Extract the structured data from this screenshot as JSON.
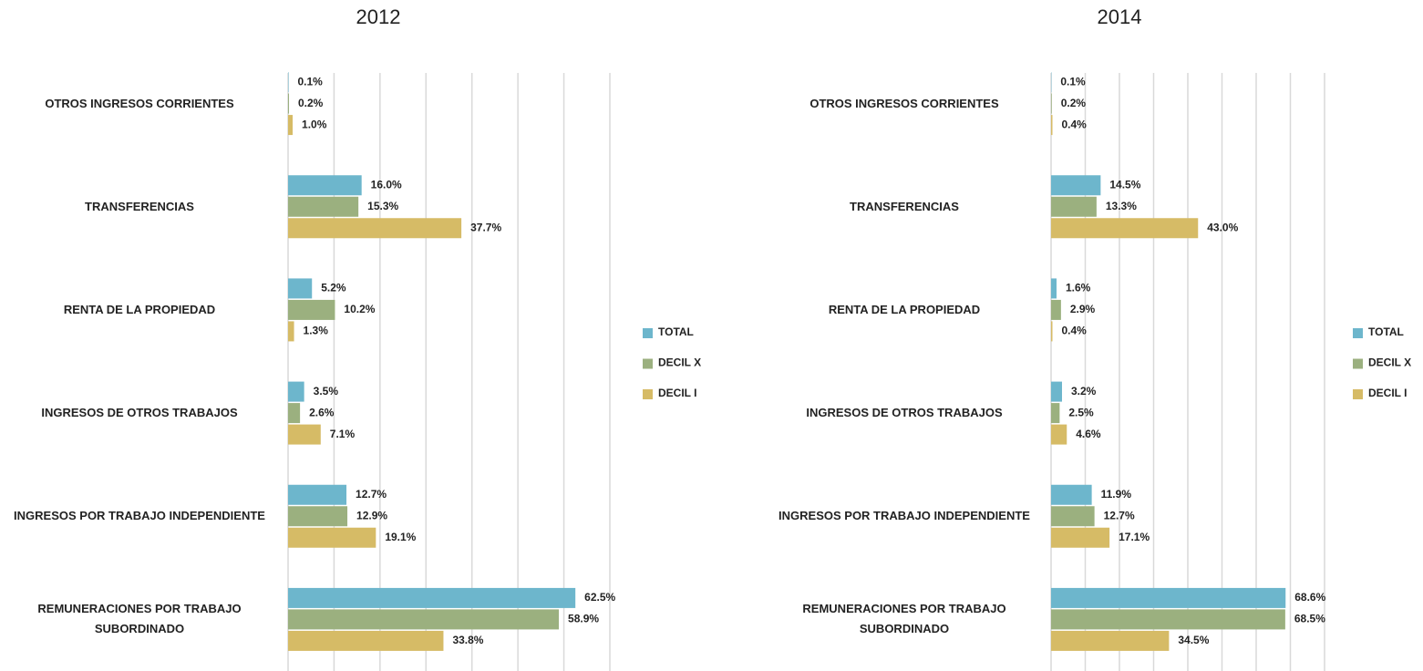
{
  "chart_data": [
    {
      "type": "barh",
      "title": "2012",
      "categories": [
        "OTROS INGRESOS CORRIENTES",
        "TRANSFERENCIAS",
        "RENTA DE LA PROPIEDAD",
        "INGRESOS DE OTROS TRABAJOS",
        "INGRESOS POR TRABAJO INDEPENDIENTE",
        "REMUNERACIONES POR TRABAJO SUBORDINADO"
      ],
      "series": [
        {
          "name": "TOTAL",
          "color": "#6db6cc",
          "values": [
            0.1,
            16.0,
            5.2,
            3.5,
            12.7,
            62.5
          ],
          "value_labels": [
            "0.1%",
            "16.0%",
            "5.2%",
            "3.5%",
            "12.7%",
            "62.5%"
          ]
        },
        {
          "name": "DECIL X",
          "color": "#9bb07f",
          "values": [
            0.2,
            15.3,
            10.2,
            2.6,
            12.9,
            58.9
          ],
          "value_labels": [
            "0.2%",
            "15.3%",
            "10.2%",
            "2.6%",
            "12.9%",
            "58.9%"
          ]
        },
        {
          "name": "DECIL I",
          "color": "#d6bb66",
          "values": [
            1.0,
            37.7,
            1.3,
            7.1,
            19.1,
            33.8
          ],
          "value_labels": [
            "1.0%",
            "37.7%",
            "1.3%",
            "7.1%",
            "19.1%",
            "33.8%"
          ]
        }
      ],
      "xlim": [
        0,
        70
      ],
      "xticks": [
        0,
        10,
        20,
        30,
        40,
        50,
        60,
        70
      ],
      "grid": true,
      "legend": "right"
    },
    {
      "type": "barh",
      "title": "2014",
      "categories": [
        "OTROS INGRESOS CORRIENTES",
        "TRANSFERENCIAS",
        "RENTA DE LA PROPIEDAD",
        "INGRESOS DE OTROS TRABAJOS",
        "INGRESOS POR TRABAJO INDEPENDIENTE",
        "REMUNERACIONES POR TRABAJO SUBORDINADO"
      ],
      "series": [
        {
          "name": "TOTAL",
          "color": "#6db6cc",
          "values": [
            0.1,
            14.5,
            1.6,
            3.2,
            11.9,
            68.6
          ],
          "value_labels": [
            "0.1%",
            "14.5%",
            "1.6%",
            "3.2%",
            "11.9%",
            "68.6%"
          ]
        },
        {
          "name": "DECIL X",
          "color": "#9bb07f",
          "values": [
            0.2,
            13.3,
            2.9,
            2.5,
            12.7,
            68.5
          ],
          "value_labels": [
            "0.2%",
            "13.3%",
            "2.9%",
            "2.5%",
            "12.7%",
            "68.5%"
          ]
        },
        {
          "name": "DECIL I",
          "color": "#d6bb66",
          "values": [
            0.4,
            43.0,
            0.4,
            4.6,
            17.1,
            34.5
          ],
          "value_labels": [
            "0.4%",
            "43.0%",
            "0.4%",
            "4.6%",
            "17.1%",
            "34.5%"
          ]
        }
      ],
      "xlim": [
        0,
        80
      ],
      "xticks": [
        0,
        10,
        20,
        30,
        40,
        50,
        60,
        70,
        80
      ],
      "grid": true,
      "legend": "right"
    }
  ]
}
